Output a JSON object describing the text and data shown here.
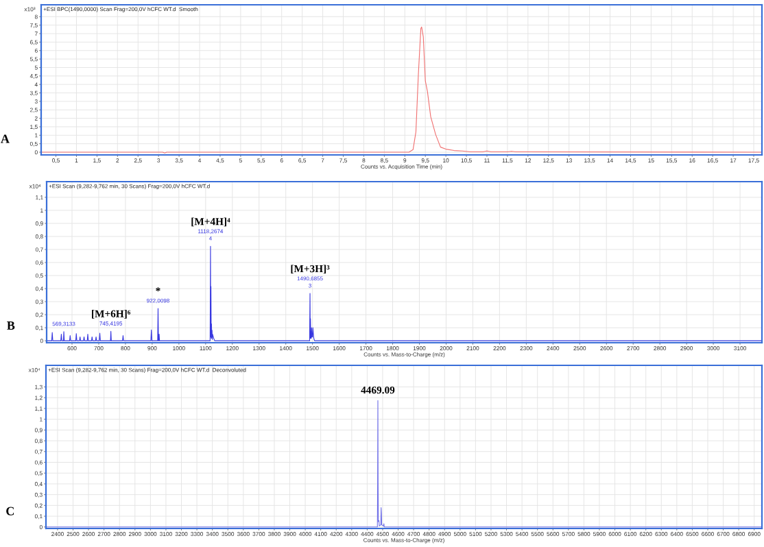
{
  "chart_data": [
    {
      "type": "line",
      "title": "+ESI BPC(1490,0000) Scan Frag=200,0V hCFC WT.d  Smooth",
      "xlabel": "Counts vs. Acquisition Time (min)",
      "ylabel": "x10³",
      "x": [
        0.14,
        3.1,
        3.15,
        3.2,
        9.1,
        9.2,
        9.27,
        9.33,
        9.39,
        9.41,
        9.45,
        9.5,
        9.55,
        9.63,
        9.75,
        9.87,
        10,
        10.2,
        10.4,
        10.6,
        10.9,
        11,
        11.1,
        11.5,
        11.6,
        11.7,
        17.7
      ],
      "series": [
        {
          "color": "#f07070",
          "values": [
            0,
            0,
            -0.05,
            0,
            0,
            0.15,
            1.2,
            4.6,
            7.3,
            7.39,
            6.8,
            4.2,
            3.6,
            2.1,
            1.05,
            0.3,
            0.18,
            0.1,
            0.07,
            0.02,
            0.02,
            0.07,
            0.02,
            0.02,
            0.05,
            0.02,
            0
          ]
        }
      ],
      "xlim": [
        0.14,
        17.7
      ],
      "ylim": [
        -0.16,
        8.7
      ],
      "xticks": [
        {
          "value": 0.5,
          "label": "0,5"
        },
        1,
        {
          "value": 1.5,
          "label": "1,5"
        },
        2,
        {
          "value": 2.5,
          "label": "2,5"
        },
        3,
        {
          "value": 3.5,
          "label": "3,5"
        },
        4,
        {
          "value": 4.5,
          "label": "4,5"
        },
        5,
        {
          "value": 5.5,
          "label": "5,5"
        },
        6,
        {
          "value": 6.5,
          "label": "6,5"
        },
        7,
        {
          "value": 7.5,
          "label": "7,5"
        },
        8,
        {
          "value": 8.5,
          "label": "8,5"
        },
        9,
        {
          "value": 9.5,
          "label": "9,5"
        },
        10,
        {
          "value": 10.5,
          "label": "10,5"
        },
        11,
        {
          "value": 11.5,
          "label": "11,5"
        },
        12,
        {
          "value": 12.5,
          "label": "12,5"
        },
        13,
        {
          "value": 13.5,
          "label": "13,5"
        },
        14,
        {
          "value": 14.5,
          "label": "14,5"
        },
        15,
        {
          "value": 15.5,
          "label": "15,5"
        },
        16,
        {
          "value": 16.5,
          "label": "16,5"
        },
        17,
        {
          "value": 17.5,
          "label": "17,5"
        }
      ],
      "yticks": [
        0,
        {
          "value": 0.5,
          "label": "0,5"
        },
        1,
        {
          "value": 1.5,
          "label": "1,5"
        },
        2,
        {
          "value": 2.5,
          "label": "2,5"
        },
        3,
        {
          "value": 3.5,
          "label": "3,5"
        },
        4,
        {
          "value": 4.5,
          "label": "4,5"
        },
        5,
        {
          "value": 5.5,
          "label": "5,5"
        },
        6,
        {
          "value": 6.5,
          "label": "6,5"
        },
        7,
        {
          "value": 7.5,
          "label": "7,5"
        },
        8
      ],
      "grid": true,
      "annotations": [
        "A"
      ]
    },
    {
      "type": "line",
      "title": "+ESI Scan (9,282-9,762 min, 30 Scans) Frag=200,0V hCFC WT.d",
      "xlabel": "Counts vs. Mass-to-Charge (m/z)",
      "ylabel": "x10⁴",
      "x": [
        505,
        524,
        526,
        528,
        558,
        560,
        562,
        568,
        569.31,
        571,
        591,
        593,
        595,
        614,
        616,
        618,
        628,
        630,
        632,
        643,
        645,
        647,
        657,
        659,
        661,
        673,
        675,
        677,
        688,
        690,
        692,
        702,
        704,
        706,
        744,
        745.42,
        747,
        789,
        791,
        793,
        895,
        897,
        899,
        920.5,
        922.01,
        923.5,
        924.5,
        926,
        927.5,
        1116.8,
        1118.27,
        1119.1,
        1119.9,
        1121,
        1122,
        1123,
        1124,
        1125,
        1126,
        1130,
        1132,
        1134,
        1489.2,
        1490.69,
        1491.5,
        1492.3,
        1493.5,
        1494.5,
        1495.5,
        1496.5,
        1498.5,
        1500,
        1501.5,
        1504,
        1506,
        1508,
        3182
      ],
      "series": [
        {
          "color": "#3838e0",
          "values": [
            0,
            0,
            0.064,
            0,
            0,
            0.05,
            0,
            0,
            0.07,
            0,
            0,
            0.04,
            0,
            0,
            0.055,
            0,
            0,
            0.03,
            0,
            0,
            0.03,
            0,
            0,
            0.05,
            0,
            0,
            0.03,
            0,
            0,
            0.03,
            0,
            0,
            0.058,
            0,
            0,
            0.073,
            0,
            0,
            0.04,
            0,
            0,
            0.083,
            0,
            0,
            0.248,
            0,
            0,
            0.05,
            0,
            0,
            0.725,
            0.03,
            0.417,
            0.02,
            0.13,
            0.02,
            0.08,
            0.01,
            0.05,
            0.02,
            0.01,
            0,
            0,
            0.363,
            0.02,
            0.17,
            0.02,
            0.07,
            0.02,
            0.1,
            0.03,
            0.03,
            0.1,
            0.03,
            0.01,
            0,
            0
          ]
        }
      ],
      "xlim": [
        505,
        3182
      ],
      "ylim": [
        -0.015,
        1.22
      ],
      "xticks": [
        600,
        700,
        800,
        900,
        1000,
        1100,
        1200,
        1300,
        1400,
        1500,
        1600,
        1700,
        1800,
        1900,
        2000,
        2100,
        2200,
        2300,
        2400,
        2500,
        2600,
        2700,
        2800,
        2900,
        3000,
        3100
      ],
      "yticks": [
        0,
        {
          "value": 0.1,
          "label": "0,1"
        },
        {
          "value": 0.2,
          "label": "0,2"
        },
        {
          "value": 0.3,
          "label": "0,3"
        },
        {
          "value": 0.4,
          "label": "0,4"
        },
        {
          "value": 0.5,
          "label": "0,5"
        },
        {
          "value": 0.6,
          "label": "0,6"
        },
        {
          "value": 0.7,
          "label": "0,7"
        },
        {
          "value": 0.8,
          "label": "0,8"
        },
        {
          "value": 0.9,
          "label": "0,9"
        },
        1,
        {
          "value": 1.1,
          "label": "1,1"
        }
      ],
      "grid": true,
      "annotations": [
        "B",
        {
          "text": "569,3133",
          "x": 569.31,
          "y": 0.07
        },
        {
          "text": "745,4195",
          "x": 745.42,
          "y": 0.073
        },
        {
          "text": "[M+6H]⁶",
          "x": 745.42,
          "y": 0.073
        },
        {
          "text": "922,0098",
          "x": 922.01,
          "y": 0.248
        },
        {
          "text": "*",
          "x": 922.01,
          "y": 0.248
        },
        {
          "text": "4",
          "x": 1118.27,
          "y": 0.725
        },
        {
          "text": "1118,2674",
          "x": 1118.27,
          "y": 0.725
        },
        {
          "text": "[M+4H]⁴",
          "x": 1118.27,
          "y": 0.725
        },
        {
          "text": "3",
          "x": 1490.69,
          "y": 0.363
        },
        {
          "text": "1490,6855",
          "x": 1490.69,
          "y": 0.363
        },
        {
          "text": "[M+3H]³",
          "x": 1490.69,
          "y": 0.363
        }
      ]
    },
    {
      "type": "line",
      "title": "+ESI Scan (9,282-9,762 min, 30 Scans) Frag=200,0V hCFC WT.d  Deconvoluted",
      "xlabel": "Counts vs. Mass-to-Charge (m/z)",
      "ylabel": "x10⁴",
      "x": [
        2325,
        4466,
        4467.5,
        4469.09,
        4470.5,
        4472,
        4476,
        4478,
        4488,
        4490,
        4492,
        4494,
        4506,
        4508,
        4510,
        6950
      ],
      "series": [
        {
          "color": "#7070e8",
          "values": [
            0,
            0,
            0.4,
            1.174,
            0.41,
            0.05,
            0.06,
            0.01,
            0.02,
            0.18,
            0.12,
            0.02,
            0.01,
            0.03,
            0,
            0
          ]
        }
      ],
      "xlim": [
        2325,
        6950
      ],
      "ylim": [
        -0.014,
        1.5
      ],
      "xticks": [
        2400,
        2500,
        2600,
        2700,
        2800,
        2900,
        3000,
        3100,
        3200,
        3300,
        3400,
        3500,
        3600,
        3700,
        3800,
        3900,
        4000,
        4100,
        4200,
        4300,
        4400,
        4500,
        4600,
        4700,
        4800,
        4900,
        5000,
        5100,
        5200,
        5300,
        5400,
        5500,
        5600,
        5700,
        5800,
        5900,
        6000,
        6100,
        6200,
        6300,
        6400,
        6500,
        6600,
        6700,
        6800,
        6900
      ],
      "yticks": [
        0,
        {
          "value": 0.1,
          "label": "0,1"
        },
        {
          "value": 0.2,
          "label": "0,2"
        },
        {
          "value": 0.3,
          "label": "0,3"
        },
        {
          "value": 0.4,
          "label": "0,4"
        },
        {
          "value": 0.5,
          "label": "0,5"
        },
        {
          "value": 0.6,
          "label": "0,6"
        },
        {
          "value": 0.7,
          "label": "0,7"
        },
        {
          "value": 0.8,
          "label": "0,8"
        },
        {
          "value": 0.9,
          "label": "0,9"
        },
        1,
        {
          "value": 1.1,
          "label": "1,1"
        },
        {
          "value": 1.2,
          "label": "1,2"
        },
        {
          "value": 1.3,
          "label": "1,3"
        }
      ],
      "grid": true,
      "annotations": [
        "C",
        {
          "text": "4469.09",
          "x": 4469.09,
          "y": 1.174
        }
      ]
    }
  ]
}
